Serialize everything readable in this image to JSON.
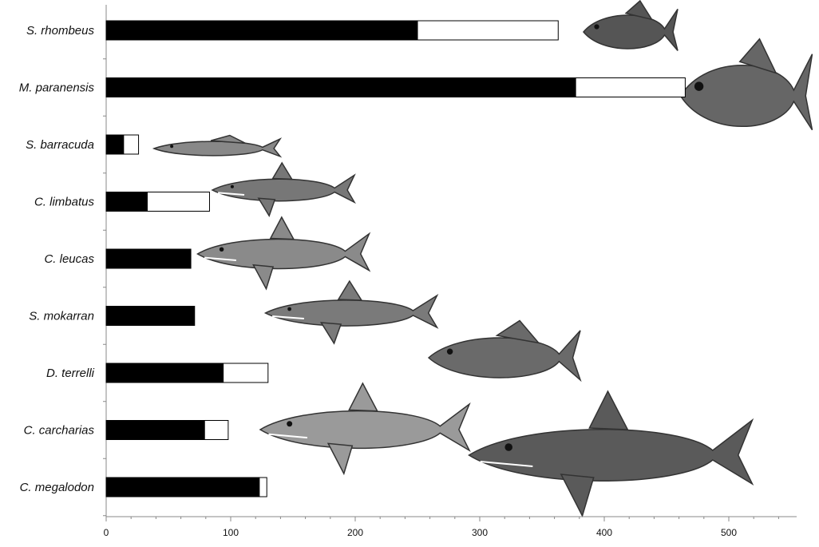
{
  "chart_data": {
    "type": "bar",
    "orientation": "horizontal",
    "stacked": true,
    "categories": [
      "S. rhombeus",
      "M. paranensis",
      "S. barracuda",
      "C. limbatus",
      "C. leucas",
      "S. mokarran",
      "D. terrelli",
      "C. carcharias",
      "C. megalodon"
    ],
    "series": [
      {
        "color": "#000000",
        "values": [
          250,
          377,
          14,
          33,
          68,
          71,
          94,
          79,
          123
        ]
      },
      {
        "color": "#ffffff",
        "values": [
          113,
          88,
          12,
          50,
          0,
          0,
          36,
          19,
          6
        ]
      }
    ],
    "xlim": [
      0,
      550
    ],
    "xticks": [
      0,
      100,
      200,
      300,
      400,
      500
    ],
    "xlabel": "",
    "ylabel": "",
    "title": "",
    "grid": false,
    "legend": "none",
    "illustrations": [
      "piranha",
      "megapiranha",
      "barracuda",
      "blacktip-shark",
      "bull-shark",
      "hammerhead-shark",
      "dunkleosteus",
      "great-white-shark",
      "megalodon"
    ]
  }
}
